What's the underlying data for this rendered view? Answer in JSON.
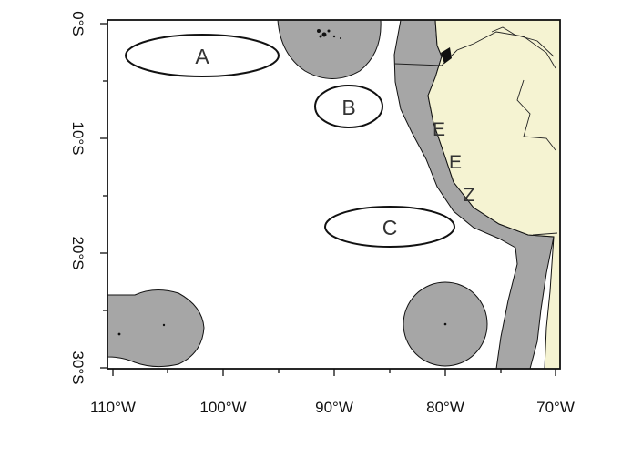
{
  "map": {
    "x_axis_ticks": [
      "110°W",
      "100°W",
      "90°W",
      "80°W",
      "70°W"
    ],
    "y_axis_ticks": [
      "0°S",
      "10°S",
      "20°S",
      "30°S"
    ],
    "regions": {
      "a": "A",
      "b": "B",
      "c": "C"
    },
    "eez_letters": [
      "E",
      "E",
      "Z"
    ],
    "colors": {
      "ocean": "#ffffff",
      "land": "#f5f3d2",
      "eez": "#a6a6a6",
      "outline": "#111111"
    }
  }
}
